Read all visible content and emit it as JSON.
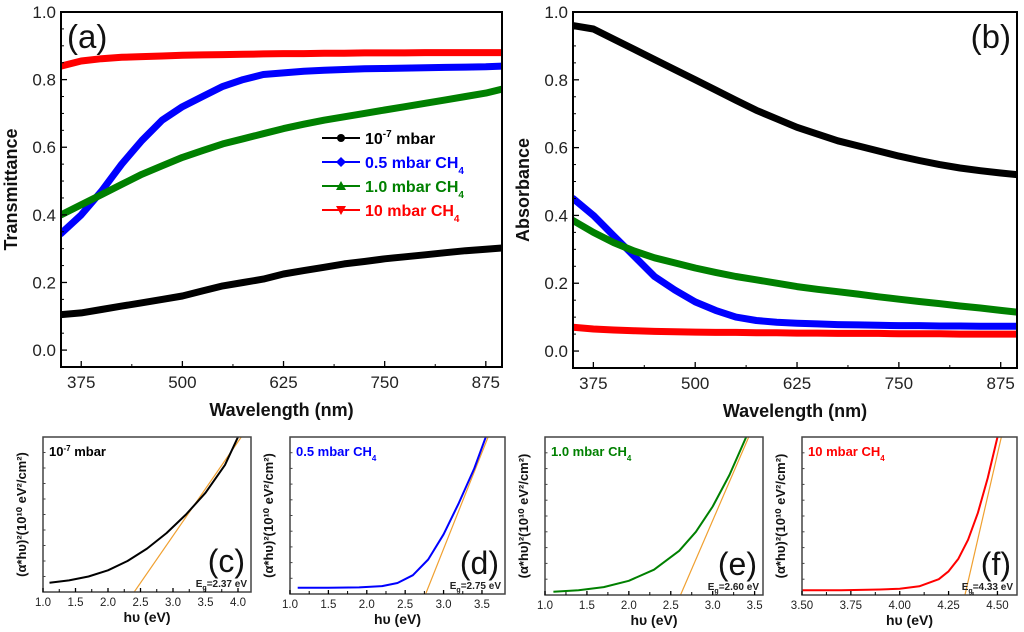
{
  "chart_data": [
    {
      "id": "a",
      "type": "line",
      "panel_label": "(a)",
      "xlabel": "Wavelength (nm)",
      "ylabel": "Transmittance",
      "xlim": [
        350,
        895
      ],
      "ylim": [
        -0.05,
        1.0
      ],
      "xticks": [
        375,
        500,
        625,
        750,
        875
      ],
      "xtick_labels": [
        "375",
        "500",
        "625",
        "750",
        "875"
      ],
      "yticks": [
        0.0,
        0.2,
        0.4,
        0.6,
        0.8,
        1.0
      ],
      "ytick_labels": [
        "0.0",
        "0.2",
        "0.4",
        "0.6",
        "0.8",
        "1.0"
      ],
      "legend": {
        "placement": "center-right",
        "entries": [
          {
            "label": "10",
            "sup": "-7",
            "suffix": " mbar",
            "sub": "",
            "marker": "circle",
            "color": "#000000"
          },
          {
            "label": "0.5 mbar CH",
            "sup": "",
            "suffix": "",
            "sub": "4",
            "marker": "diamond",
            "color": "#0000ff"
          },
          {
            "label": "1.0 mbar CH",
            "sup": "",
            "suffix": "",
            "sub": "4",
            "marker": "triangle-up",
            "color": "#008000"
          },
          {
            "label": "10  mbar CH",
            "sup": "",
            "suffix": "",
            "sub": "4",
            "marker": "triangle-down",
            "color": "#ff0000"
          }
        ]
      },
      "x": [
        350,
        375,
        400,
        425,
        450,
        475,
        500,
        525,
        550,
        575,
        600,
        625,
        650,
        675,
        700,
        725,
        750,
        775,
        800,
        825,
        850,
        875,
        895
      ],
      "series": [
        {
          "name": "10^-7 mbar",
          "color": "#000000",
          "values": [
            0.105,
            0.11,
            0.12,
            0.13,
            0.14,
            0.15,
            0.16,
            0.175,
            0.19,
            0.2,
            0.21,
            0.225,
            0.235,
            0.245,
            0.255,
            0.262,
            0.27,
            0.276,
            0.282,
            0.288,
            0.294,
            0.298,
            0.302
          ]
        },
        {
          "name": "0.5 mbar CH4",
          "color": "#0000ff",
          "values": [
            0.345,
            0.4,
            0.47,
            0.55,
            0.62,
            0.68,
            0.72,
            0.75,
            0.78,
            0.8,
            0.815,
            0.82,
            0.825,
            0.828,
            0.83,
            0.832,
            0.833,
            0.834,
            0.835,
            0.836,
            0.837,
            0.838,
            0.84
          ]
        },
        {
          "name": "1.0 mbar CH4",
          "color": "#008000",
          "values": [
            0.4,
            0.43,
            0.46,
            0.49,
            0.52,
            0.545,
            0.57,
            0.59,
            0.61,
            0.625,
            0.64,
            0.655,
            0.668,
            0.68,
            0.69,
            0.7,
            0.71,
            0.72,
            0.73,
            0.74,
            0.75,
            0.76,
            0.772
          ]
        },
        {
          "name": "10 mbar CH4",
          "color": "#ff0000",
          "values": [
            0.84,
            0.855,
            0.862,
            0.866,
            0.868,
            0.87,
            0.872,
            0.873,
            0.874,
            0.875,
            0.876,
            0.877,
            0.877,
            0.878,
            0.878,
            0.879,
            0.879,
            0.879,
            0.88,
            0.88,
            0.88,
            0.88,
            0.88
          ]
        }
      ]
    },
    {
      "id": "b",
      "type": "line",
      "panel_label": "(b)",
      "xlabel": "Wavelength (nm)",
      "ylabel": "Absorbance",
      "xlim": [
        350,
        895
      ],
      "ylim": [
        -0.05,
        1.0
      ],
      "xticks": [
        375,
        500,
        625,
        750,
        875
      ],
      "xtick_labels": [
        "375",
        "500",
        "625",
        "750",
        "875"
      ],
      "yticks": [
        0.0,
        0.2,
        0.4,
        0.6,
        0.8,
        1.0
      ],
      "ytick_labels": [
        "0.0",
        "0.2",
        "0.4",
        "0.6",
        "0.8",
        "1.0"
      ],
      "x": [
        350,
        375,
        400,
        425,
        450,
        475,
        500,
        525,
        550,
        575,
        600,
        625,
        650,
        675,
        700,
        725,
        750,
        775,
        800,
        825,
        850,
        875,
        895
      ],
      "series": [
        {
          "name": "10^-7 mbar",
          "color": "#000000",
          "values": [
            0.96,
            0.95,
            0.92,
            0.89,
            0.86,
            0.83,
            0.8,
            0.77,
            0.74,
            0.71,
            0.685,
            0.66,
            0.64,
            0.62,
            0.605,
            0.59,
            0.575,
            0.562,
            0.55,
            0.54,
            0.532,
            0.525,
            0.52
          ]
        },
        {
          "name": "0.5 mbar CH4",
          "color": "#0000ff",
          "values": [
            0.45,
            0.4,
            0.34,
            0.28,
            0.22,
            0.18,
            0.145,
            0.12,
            0.1,
            0.09,
            0.085,
            0.082,
            0.08,
            0.078,
            0.077,
            0.076,
            0.075,
            0.075,
            0.074,
            0.074,
            0.073,
            0.073,
            0.073
          ]
        },
        {
          "name": "1.0 mbar CH4",
          "color": "#008000",
          "values": [
            0.385,
            0.35,
            0.32,
            0.295,
            0.275,
            0.26,
            0.245,
            0.232,
            0.22,
            0.21,
            0.2,
            0.19,
            0.182,
            0.175,
            0.168,
            0.16,
            0.153,
            0.146,
            0.14,
            0.133,
            0.127,
            0.12,
            0.115
          ]
        },
        {
          "name": "10 mbar CH4",
          "color": "#ff0000",
          "values": [
            0.07,
            0.065,
            0.062,
            0.06,
            0.058,
            0.057,
            0.056,
            0.055,
            0.055,
            0.054,
            0.054,
            0.053,
            0.053,
            0.052,
            0.052,
            0.052,
            0.051,
            0.051,
            0.051,
            0.05,
            0.05,
            0.05,
            0.05
          ]
        }
      ]
    },
    {
      "id": "c",
      "type": "line",
      "panel_label": "(c)",
      "title": "10^-7 mbar",
      "title_main": "10",
      "title_sup": "-7",
      "title_suffix": " mbar",
      "title_sub": "",
      "title_color": "#000000",
      "xlabel": "hυ (eV)",
      "ylabel": "(α*hυ)²(10¹⁰ eV²/cm²)",
      "xlim": [
        1.0,
        4.2
      ],
      "ylim": [
        0,
        1
      ],
      "xticks": [
        1.0,
        1.5,
        2.0,
        2.5,
        3.0,
        3.5,
        4.0
      ],
      "xtick_labels": [
        "1.0",
        "1.5",
        "2.0",
        "2.5",
        "3.0",
        "3.5",
        "4.0"
      ],
      "annotation": {
        "eg_label": "E",
        "eg_sub": "g",
        "eg_value": "=2.37 eV"
      },
      "fit_line": {
        "color": "#f0a030",
        "x": [
          2.37,
          4.05
        ],
        "y": [
          -0.02,
          1.0
        ]
      },
      "series": [
        {
          "name": "10^-7 mbar",
          "color": "#000000",
          "x": [
            1.1,
            1.4,
            1.7,
            2.0,
            2.3,
            2.6,
            2.9,
            3.2,
            3.5,
            3.8,
            4.0
          ],
          "values": [
            0.06,
            0.075,
            0.1,
            0.14,
            0.2,
            0.28,
            0.38,
            0.5,
            0.64,
            0.82,
            1.0
          ]
        }
      ]
    },
    {
      "id": "d",
      "type": "line",
      "panel_label": "(d)",
      "title": "0.5 mbar CH4",
      "title_main": "0.5 mbar CH",
      "title_sup": "",
      "title_suffix": "",
      "title_sub": "4",
      "title_color": "#0000ff",
      "xlabel": "hυ (eV)",
      "ylabel": "(α*hυ)²(10¹⁰ eV²/cm²)",
      "xlim": [
        1.0,
        3.8
      ],
      "ylim": [
        0,
        1
      ],
      "xticks": [
        1.0,
        1.5,
        2.0,
        2.5,
        3.0,
        3.5
      ],
      "xtick_labels": [
        "1.0",
        "1.5",
        "2.0",
        "2.5",
        "3.0",
        "3.5"
      ],
      "annotation": {
        "eg_label": "E",
        "eg_sub": "g",
        "eg_value": "=2.75 eV"
      },
      "fit_line": {
        "color": "#f0a030",
        "x": [
          2.75,
          3.58
        ],
        "y": [
          -0.02,
          1.0
        ]
      },
      "series": [
        {
          "name": "0.5 mbar CH4",
          "color": "#0000ff",
          "x": [
            1.1,
            1.5,
            1.9,
            2.2,
            2.4,
            2.6,
            2.8,
            3.0,
            3.2,
            3.4,
            3.55
          ],
          "values": [
            0.04,
            0.04,
            0.042,
            0.05,
            0.07,
            0.12,
            0.22,
            0.38,
            0.58,
            0.8,
            1.0
          ]
        }
      ]
    },
    {
      "id": "e",
      "type": "line",
      "panel_label": "(e)",
      "title": "1.0 mbar CH4",
      "title_main": "1.0 mbar CH",
      "title_sup": "",
      "title_suffix": "",
      "title_sub": "4",
      "title_color": "#008000",
      "xlabel": "hυ (eV)",
      "ylabel": "(α*hυ)²(10¹⁰ eV²/cm²)",
      "xlim": [
        1.0,
        3.6
      ],
      "ylim": [
        0,
        1
      ],
      "xticks": [
        1.0,
        1.5,
        2.0,
        2.5,
        3.0,
        3.5
      ],
      "xtick_labels": [
        "1.0",
        "1.5",
        "2.0",
        "2.5",
        "3.0",
        "3.5"
      ],
      "annotation": {
        "eg_label": "E",
        "eg_sub": "g",
        "eg_value": "=2.60 eV"
      },
      "fit_line": {
        "color": "#f0a030",
        "x": [
          2.6,
          3.43
        ],
        "y": [
          -0.02,
          1.0
        ]
      },
      "series": [
        {
          "name": "1.0 mbar CH4",
          "color": "#008000",
          "x": [
            1.1,
            1.4,
            1.7,
            2.0,
            2.3,
            2.6,
            2.8,
            3.0,
            3.2,
            3.4
          ],
          "values": [
            0.02,
            0.03,
            0.05,
            0.09,
            0.16,
            0.28,
            0.4,
            0.56,
            0.76,
            1.0
          ]
        }
      ]
    },
    {
      "id": "f",
      "type": "line",
      "panel_label": "(f)",
      "title": "10 mbar CH4",
      "title_main": "10 mbar CH",
      "title_sup": "",
      "title_suffix": "",
      "title_sub": "4",
      "title_color": "#ff0000",
      "xlabel": "hυ (eV)",
      "ylabel": "(α*hυ)²(10¹⁰ eV²/cm²)",
      "xlim": [
        3.5,
        4.6
      ],
      "ylim": [
        0,
        1
      ],
      "xticks": [
        3.5,
        3.75,
        4.0,
        4.25,
        4.5
      ],
      "xtick_labels": [
        "3.50",
        "3.75",
        "4.00",
        "4.25",
        "4.50"
      ],
      "annotation": {
        "eg_label": "E",
        "eg_sub": "g",
        "eg_value": "=4.33 eV"
      },
      "fit_line": {
        "color": "#f0a030",
        "x": [
          4.33,
          4.52
        ],
        "y": [
          -0.02,
          1.0
        ]
      },
      "series": [
        {
          "name": "10 mbar CH4",
          "color": "#ff0000",
          "x": [
            3.5,
            3.7,
            3.9,
            4.0,
            4.1,
            4.2,
            4.25,
            4.3,
            4.35,
            4.4,
            4.45,
            4.5
          ],
          "values": [
            0.03,
            0.03,
            0.035,
            0.04,
            0.055,
            0.1,
            0.15,
            0.23,
            0.35,
            0.52,
            0.74,
            1.0
          ]
        }
      ]
    }
  ]
}
